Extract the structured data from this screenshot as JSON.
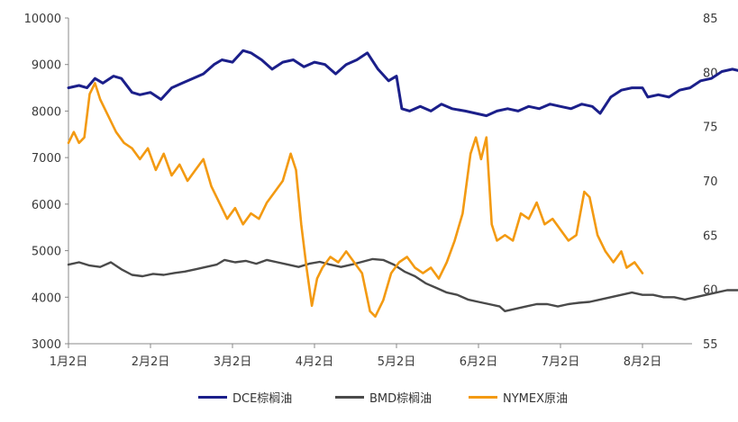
{
  "chart_data": {
    "type": "line",
    "title": "",
    "x_tick_labels": [
      "1月2日",
      "2月2日",
      "3月2日",
      "4月2日",
      "5月2日",
      "6月2日",
      "7月2日",
      "8月2日"
    ],
    "y_left": {
      "ylim": [
        3000,
        10000
      ],
      "ticks": [
        "3000",
        "4000",
        "5000",
        "6000",
        "7000",
        "8000",
        "9000",
        "10000"
      ]
    },
    "y_right": {
      "ylim": [
        55,
        85
      ],
      "ticks": [
        "55",
        "60",
        "65",
        "70",
        "75",
        "80",
        "85"
      ]
    },
    "grid": false,
    "legend_position": "bottom",
    "series": [
      {
        "name": "DCE棕榈油",
        "axis": "left",
        "color": "#1b1f8a",
        "points": [
          [
            "1-02",
            8500
          ],
          [
            "1-06",
            8550
          ],
          [
            "1-09",
            8500
          ],
          [
            "1-12",
            8700
          ],
          [
            "1-15",
            8600
          ],
          [
            "1-19",
            8750
          ],
          [
            "1-22",
            8700
          ],
          [
            "1-26",
            8400
          ],
          [
            "1-29",
            8350
          ],
          [
            "2-02",
            8400
          ],
          [
            "2-06",
            8250
          ],
          [
            "2-10",
            8500
          ],
          [
            "2-14",
            8600
          ],
          [
            "2-18",
            8700
          ],
          [
            "2-22",
            8800
          ],
          [
            "2-26",
            9000
          ],
          [
            "3-01",
            9100
          ],
          [
            "3-05",
            9050
          ],
          [
            "3-09",
            9300
          ],
          [
            "3-12",
            9250
          ],
          [
            "3-16",
            9100
          ],
          [
            "3-20",
            8900
          ],
          [
            "3-24",
            9050
          ],
          [
            "3-28",
            9100
          ],
          [
            "4-01",
            8950
          ],
          [
            "4-05",
            9050
          ],
          [
            "4-09",
            9000
          ],
          [
            "4-13",
            8800
          ],
          [
            "4-17",
            9000
          ],
          [
            "4-21",
            9100
          ],
          [
            "4-25",
            9250
          ],
          [
            "4-29",
            8900
          ],
          [
            "5-03",
            8650
          ],
          [
            "5-06",
            8750
          ],
          [
            "5-08",
            8050
          ],
          [
            "5-11",
            8000
          ],
          [
            "5-15",
            8100
          ],
          [
            "5-19",
            8000
          ],
          [
            "5-23",
            8150
          ],
          [
            "5-27",
            8050
          ],
          [
            "6-01",
            8000
          ],
          [
            "6-05",
            7950
          ],
          [
            "6-09",
            7900
          ],
          [
            "6-13",
            8000
          ],
          [
            "6-17",
            8050
          ],
          [
            "6-21",
            8000
          ],
          [
            "6-25",
            8100
          ],
          [
            "6-29",
            8050
          ],
          [
            "7-03",
            8150
          ],
          [
            "7-07",
            8100
          ],
          [
            "7-11",
            8050
          ],
          [
            "7-15",
            8150
          ],
          [
            "7-19",
            8100
          ],
          [
            "7-22",
            7950
          ],
          [
            "7-26",
            8300
          ],
          [
            "7-30",
            8450
          ],
          [
            "8-03",
            8500
          ],
          [
            "8-07",
            8500
          ],
          [
            "8-09",
            8300
          ],
          [
            "8-13",
            8350
          ],
          [
            "8-17",
            8300
          ],
          [
            "8-21",
            8450
          ],
          [
            "8-25",
            8500
          ],
          [
            "8-29",
            8650
          ],
          [
            "9-02",
            8700
          ],
          [
            "9-06",
            8850
          ],
          [
            "9-10",
            8900
          ],
          [
            "9-14",
            8850
          ],
          [
            "9-18",
            9000
          ],
          [
            "9-22",
            8950
          ],
          [
            "9-26",
            8900
          ],
          [
            "9-30",
            8950
          ],
          [
            "10-04",
            8950
          ],
          [
            "10-08",
            8900
          ],
          [
            "10-12",
            9200
          ],
          [
            "10-16",
            9400
          ],
          [
            "10-20",
            9500
          ],
          [
            "10-24",
            9600
          ],
          [
            "10-27",
            9550
          ]
        ]
      },
      {
        "name": "BMD棕榈油",
        "axis": "left",
        "color": "#4a4a4a",
        "points": [
          [
            "1-02",
            4700
          ],
          [
            "1-06",
            4750
          ],
          [
            "1-10",
            4680
          ],
          [
            "1-14",
            4650
          ],
          [
            "1-18",
            4750
          ],
          [
            "1-22",
            4600
          ],
          [
            "1-26",
            4480
          ],
          [
            "1-30",
            4450
          ],
          [
            "2-03",
            4500
          ],
          [
            "2-07",
            4480
          ],
          [
            "2-11",
            4520
          ],
          [
            "2-15",
            4550
          ],
          [
            "2-19",
            4600
          ],
          [
            "2-23",
            4650
          ],
          [
            "2-27",
            4700
          ],
          [
            "3-02",
            4800
          ],
          [
            "3-06",
            4750
          ],
          [
            "3-10",
            4780
          ],
          [
            "3-14",
            4720
          ],
          [
            "3-18",
            4800
          ],
          [
            "3-22",
            4750
          ],
          [
            "3-26",
            4700
          ],
          [
            "3-30",
            4650
          ],
          [
            "4-03",
            4720
          ],
          [
            "4-07",
            4760
          ],
          [
            "4-11",
            4700
          ],
          [
            "4-15",
            4650
          ],
          [
            "4-19",
            4700
          ],
          [
            "4-23",
            4760
          ],
          [
            "4-27",
            4820
          ],
          [
            "5-01",
            4800
          ],
          [
            "5-05",
            4700
          ],
          [
            "5-09",
            4550
          ],
          [
            "5-13",
            4450
          ],
          [
            "5-17",
            4300
          ],
          [
            "5-21",
            4200
          ],
          [
            "5-25",
            4100
          ],
          [
            "5-29",
            4050
          ],
          [
            "6-02",
            3950
          ],
          [
            "6-06",
            3900
          ],
          [
            "6-10",
            3850
          ],
          [
            "6-14",
            3800
          ],
          [
            "6-16",
            3700
          ],
          [
            "6-20",
            3750
          ],
          [
            "6-24",
            3800
          ],
          [
            "6-28",
            3850
          ],
          [
            "7-02",
            3850
          ],
          [
            "7-06",
            3800
          ],
          [
            "7-10",
            3850
          ],
          [
            "7-14",
            3880
          ],
          [
            "7-18",
            3900
          ],
          [
            "7-22",
            3950
          ],
          [
            "7-26",
            4000
          ],
          [
            "7-30",
            4050
          ],
          [
            "8-03",
            4100
          ],
          [
            "8-07",
            4050
          ],
          [
            "8-11",
            4050
          ],
          [
            "8-15",
            4000
          ],
          [
            "8-19",
            4000
          ],
          [
            "8-23",
            3950
          ],
          [
            "8-27",
            4000
          ],
          [
            "8-31",
            4050
          ],
          [
            "9-04",
            4100
          ],
          [
            "9-08",
            4150
          ],
          [
            "9-12",
            4150
          ],
          [
            "9-16",
            4200
          ],
          [
            "9-20",
            4250
          ],
          [
            "9-24",
            4200
          ],
          [
            "9-28",
            4200
          ],
          [
            "10-02",
            4200
          ],
          [
            "10-06",
            4250
          ],
          [
            "10-10",
            4300
          ],
          [
            "10-14",
            4300
          ],
          [
            "10-18",
            4350
          ],
          [
            "10-22",
            4400
          ],
          [
            "10-27",
            4450
          ]
        ]
      },
      {
        "name": "NYMEX原油",
        "axis": "right",
        "color": "#f39a12",
        "points": [
          [
            "1-02",
            73.5
          ],
          [
            "1-04",
            74.5
          ],
          [
            "1-06",
            73.5
          ],
          [
            "1-08",
            74.0
          ],
          [
            "1-10",
            78.0
          ],
          [
            "1-12",
            79.0
          ],
          [
            "1-14",
            77.5
          ],
          [
            "1-17",
            76.0
          ],
          [
            "1-20",
            74.5
          ],
          [
            "1-23",
            73.5
          ],
          [
            "1-26",
            73.0
          ],
          [
            "1-29",
            72.0
          ],
          [
            "2-01",
            73.0
          ],
          [
            "2-04",
            71.0
          ],
          [
            "2-07",
            72.5
          ],
          [
            "2-10",
            70.5
          ],
          [
            "2-13",
            71.5
          ],
          [
            "2-16",
            70.0
          ],
          [
            "2-19",
            71.0
          ],
          [
            "2-22",
            72.0
          ],
          [
            "2-25",
            69.5
          ],
          [
            "2-28",
            68.0
          ],
          [
            "3-03",
            66.5
          ],
          [
            "3-06",
            67.5
          ],
          [
            "3-09",
            66.0
          ],
          [
            "3-12",
            67.0
          ],
          [
            "3-15",
            66.5
          ],
          [
            "3-18",
            68.0
          ],
          [
            "3-21",
            69.0
          ],
          [
            "3-24",
            70.0
          ],
          [
            "3-27",
            72.5
          ],
          [
            "3-29",
            71.0
          ],
          [
            "3-31",
            66.0
          ],
          [
            "4-02",
            62.0
          ],
          [
            "4-04",
            58.5
          ],
          [
            "4-06",
            61.0
          ],
          [
            "4-08",
            62.0
          ],
          [
            "4-11",
            63.0
          ],
          [
            "4-14",
            62.5
          ],
          [
            "4-17",
            63.5
          ],
          [
            "4-20",
            62.5
          ],
          [
            "4-23",
            61.5
          ],
          [
            "4-26",
            58.0
          ],
          [
            "4-28",
            57.5
          ],
          [
            "5-01",
            59.0
          ],
          [
            "5-04",
            61.5
          ],
          [
            "5-07",
            62.5
          ],
          [
            "5-10",
            63.0
          ],
          [
            "5-13",
            62.0
          ],
          [
            "5-16",
            61.5
          ],
          [
            "5-19",
            62.0
          ],
          [
            "5-22",
            61.0
          ],
          [
            "5-25",
            62.5
          ],
          [
            "5-28",
            64.5
          ],
          [
            "5-31",
            67.0
          ],
          [
            "6-03",
            72.5
          ],
          [
            "6-05",
            74.0
          ],
          [
            "6-07",
            72.0
          ],
          [
            "6-09",
            74.0
          ],
          [
            "6-11",
            66.0
          ],
          [
            "6-13",
            64.5
          ],
          [
            "6-16",
            65.0
          ],
          [
            "6-19",
            64.5
          ],
          [
            "6-22",
            67.0
          ],
          [
            "6-25",
            66.5
          ],
          [
            "6-28",
            68.0
          ],
          [
            "7-01",
            66.0
          ],
          [
            "7-04",
            66.5
          ],
          [
            "7-07",
            65.5
          ],
          [
            "7-10",
            64.5
          ],
          [
            "7-13",
            65.0
          ],
          [
            "7-16",
            69.0
          ],
          [
            "7-18",
            68.5
          ],
          [
            "7-21",
            65.0
          ],
          [
            "7-24",
            63.5
          ],
          [
            "7-27",
            62.5
          ],
          [
            "7-30",
            63.5
          ],
          [
            "8-01",
            62.0
          ],
          [
            "8-04",
            62.5
          ],
          [
            "8-07",
            61.5
          ]
        ]
      }
    ]
  }
}
